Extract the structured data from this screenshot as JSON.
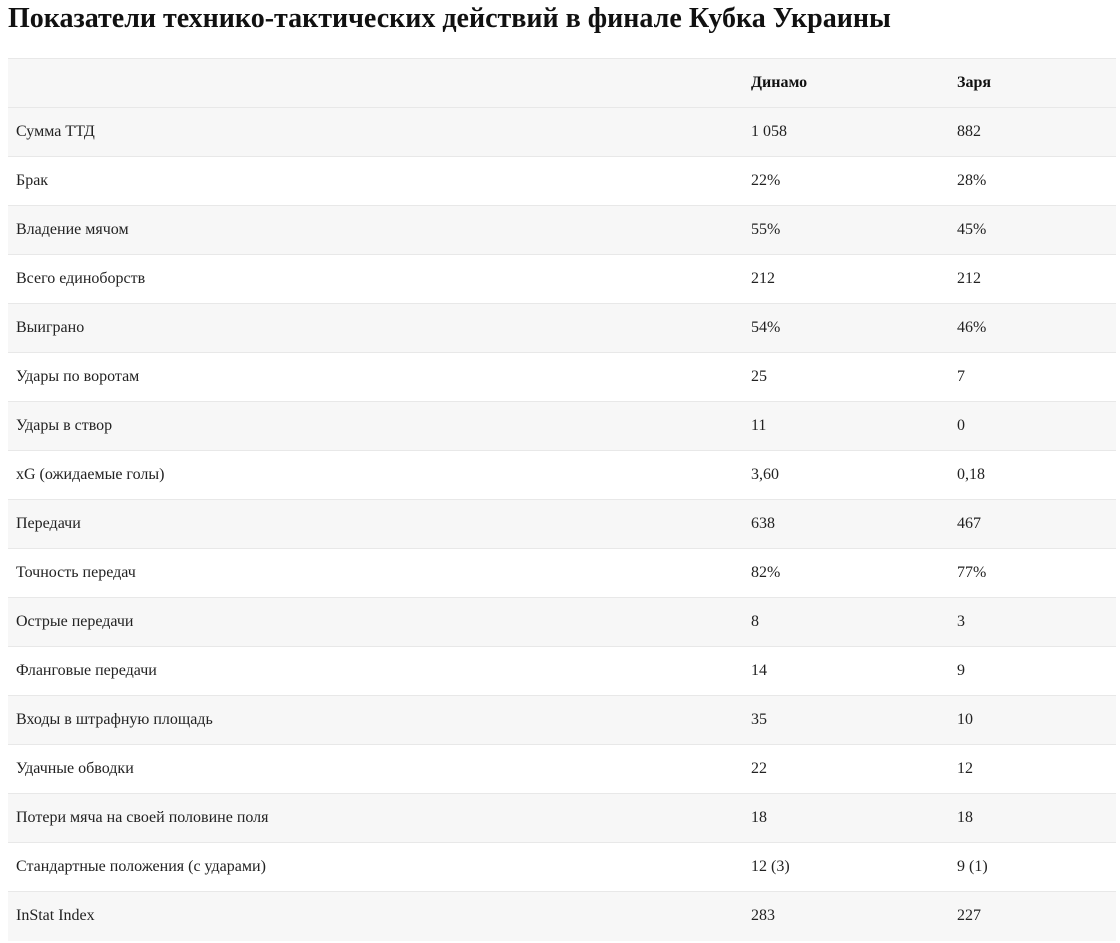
{
  "title": "Показатели технико-тактических действий в финале Кубка Украины",
  "table": {
    "headers": [
      "",
      "Динамо",
      "Заря"
    ],
    "rows": [
      [
        "Сумма ТТД",
        "1 058",
        "882"
      ],
      [
        "Брак",
        "22%",
        "28%"
      ],
      [
        "Владение мячом",
        "55%",
        "45%"
      ],
      [
        "Всего единоборств",
        "212",
        "212"
      ],
      [
        "Выиграно",
        "54%",
        "46%"
      ],
      [
        "Удары по воротам",
        "25",
        "7"
      ],
      [
        "Удары в створ",
        "11",
        "0"
      ],
      [
        "xG (ожидаемые голы)",
        "3,60",
        "0,18"
      ],
      [
        "Передачи",
        "638",
        "467"
      ],
      [
        "Точность передач",
        "82%",
        "77%"
      ],
      [
        "Острые передачи",
        "8",
        "3"
      ],
      [
        "Фланговые передачи",
        "14",
        "9"
      ],
      [
        "Входы в штрафную площадь",
        "35",
        "10"
      ],
      [
        "Удачные обводки",
        "22",
        "12"
      ],
      [
        "Потери мяча на своей половине поля",
        "18",
        "18"
      ],
      [
        "Стандартные положения (с ударами)",
        "12 (3)",
        "9 (1)"
      ],
      [
        "InStat Index",
        "283",
        "227"
      ]
    ]
  }
}
